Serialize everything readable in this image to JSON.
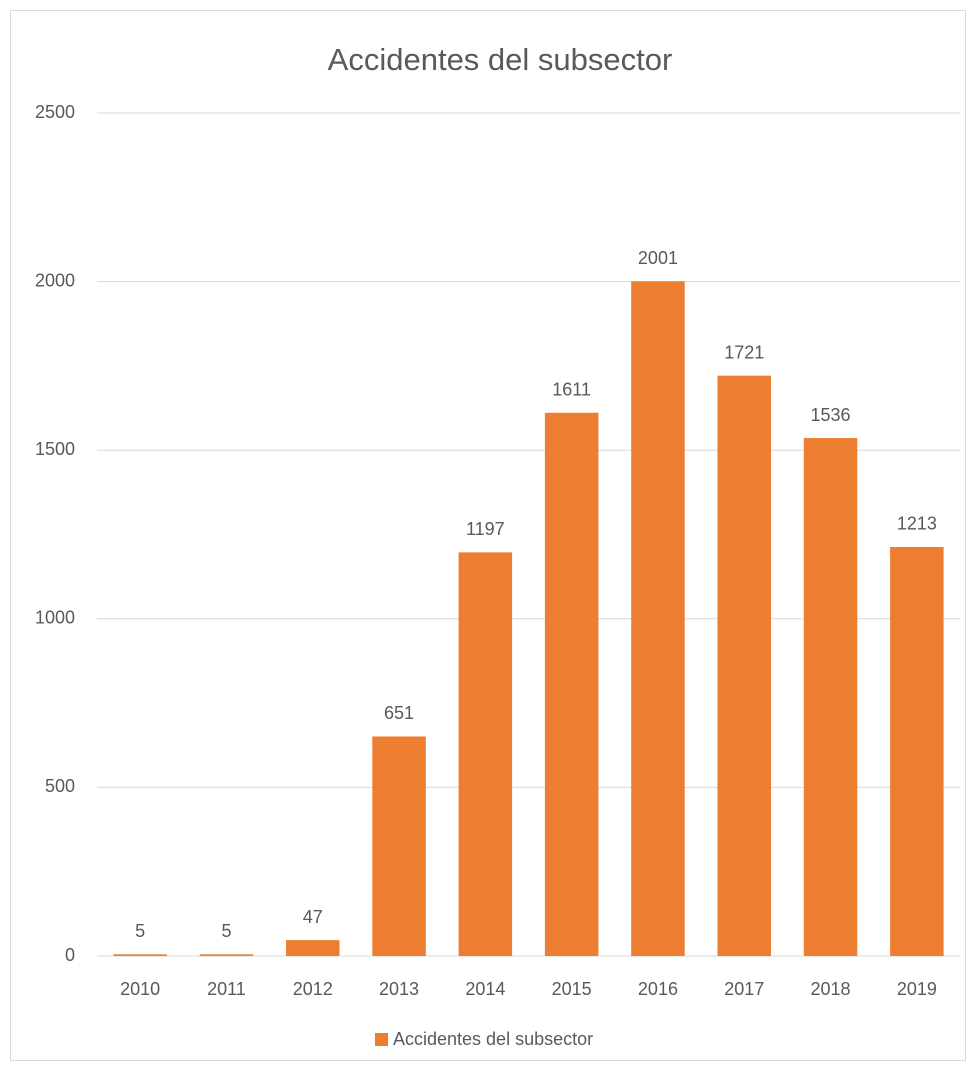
{
  "chart_data": {
    "type": "bar",
    "title": "Accidentes del subsector",
    "categories": [
      "2010",
      "2011",
      "2012",
      "2013",
      "2014",
      "2015",
      "2016",
      "2017",
      "2018",
      "2019"
    ],
    "series": [
      {
        "name": "Accidentes del subsector",
        "color": "#ed7d31",
        "values": [
          5,
          5,
          47,
          651,
          1197,
          1611,
          2001,
          1721,
          1536,
          1213
        ]
      }
    ],
    "ylim": [
      0,
      2500
    ],
    "yticks": [
      0,
      500,
      1000,
      1500,
      2000,
      2500
    ],
    "grid": true,
    "legend": "bottom"
  }
}
